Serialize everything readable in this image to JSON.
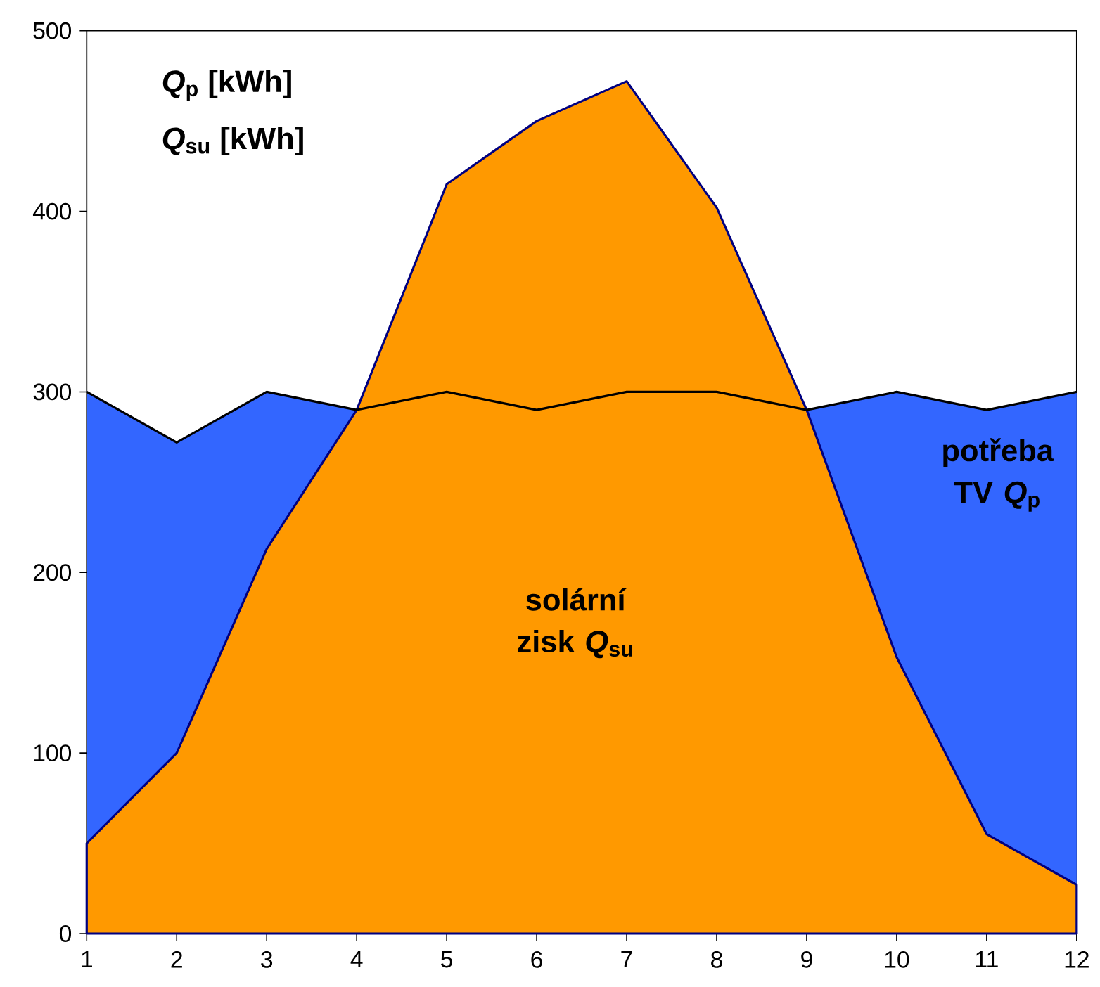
{
  "chart_data": {
    "type": "area",
    "x": [
      1,
      2,
      3,
      4,
      5,
      6,
      7,
      8,
      9,
      10,
      11,
      12
    ],
    "series": [
      {
        "name": "potřeba TV *Q*$_{p}$",
        "color": "#3366ff",
        "values": [
          300,
          272,
          300,
          290,
          300,
          290,
          300,
          300,
          290,
          300,
          290,
          300
        ]
      },
      {
        "name": "solární zisk *Q*$_{su}$",
        "color": "#ff9900",
        "values": [
          50,
          100,
          213,
          290,
          415,
          450,
          472,
          402,
          290,
          153,
          55,
          27
        ]
      }
    ],
    "annotations": [
      "*Q*$_{p}$ [kWh]",
      "*Q*$_{su}$ [kWh]"
    ],
    "xlim": [
      1,
      12
    ],
    "xticks": [
      1,
      2,
      3,
      4,
      5,
      6,
      7,
      8,
      9,
      10,
      11,
      12
    ],
    "ylim": [
      0,
      500
    ],
    "yticks": [
      0,
      100,
      200,
      300,
      400,
      500
    ],
    "grid": false
  }
}
